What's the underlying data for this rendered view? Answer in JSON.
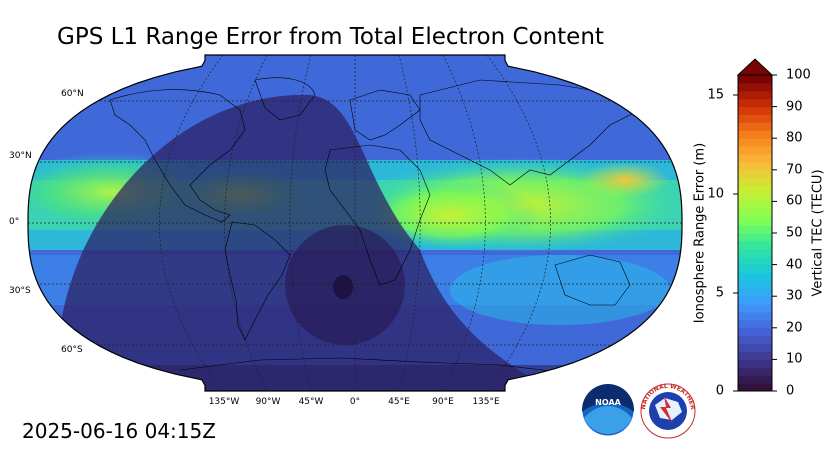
{
  "title": "GPS L1 Range Error from Total Electron Content",
  "timestamp": "2025-06-16 04:15Z",
  "map": {
    "projection": "robinson",
    "lat_labels": [
      "60°N",
      "30°N",
      "0°",
      "30°S",
      "60°S"
    ],
    "lon_labels": [
      "135°W",
      "90°W",
      "45°W",
      "0°",
      "45°E",
      "90°E",
      "135°E"
    ],
    "night_side": "western hemisphere and South Atlantic",
    "peak_tec_regions": [
      "equatorial Indian Ocean",
      "central Pacific equator"
    ]
  },
  "colorbar": {
    "left_label": "Ionosphere Range Error (m)",
    "right_label": "Vertical TEC (TECU)",
    "left_ticks": [
      "0",
      "5",
      "10",
      "15"
    ],
    "right_ticks": [
      "0",
      "10",
      "20",
      "30",
      "40",
      "50",
      "60",
      "70",
      "80",
      "90",
      "100"
    ],
    "colors": [
      "#30123b",
      "#3e378f",
      "#4662d7",
      "#3e9bfe",
      "#1ac7dd",
      "#2ee59e",
      "#83ff52",
      "#c5f033",
      "#faba39",
      "#f5801d",
      "#d23105",
      "#7a0403"
    ]
  },
  "logos": {
    "noaa": "NOAA",
    "nws": "NATIONAL WEATHER SERVICE"
  }
}
